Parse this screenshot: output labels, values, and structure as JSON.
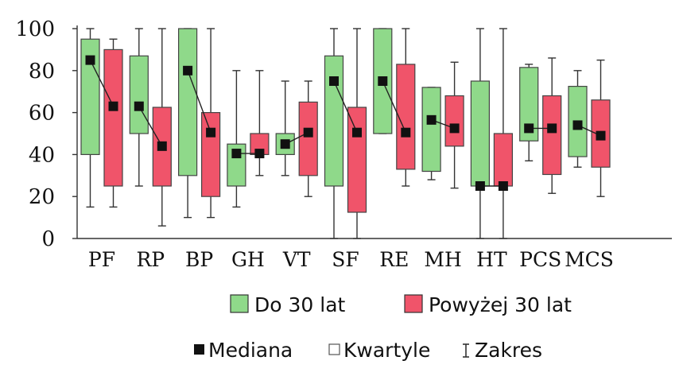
{
  "chart_data": {
    "type": "boxplot",
    "title": "",
    "xlabel": "",
    "ylabel": "",
    "ylim": [
      0,
      100
    ],
    "yticks": [
      0,
      20,
      40,
      60,
      80,
      100
    ],
    "grid": false,
    "legend_position": "bottom",
    "categories": [
      "PF",
      "RP",
      "BP",
      "GH",
      "VT",
      "SF",
      "RE",
      "MH",
      "HT",
      "PCS",
      "MCS"
    ],
    "series": [
      {
        "name": "Do 30 lat",
        "color": "#8fd98a",
        "boxes": [
          {
            "min": 15,
            "q1": 40,
            "median": 85,
            "q3": 95,
            "max": 100
          },
          {
            "min": 25,
            "q1": 50,
            "median": 63,
            "q3": 87,
            "max": 100
          },
          {
            "min": 10,
            "q1": 30,
            "median": 80,
            "q3": 100,
            "max": 100
          },
          {
            "min": 15,
            "q1": 25,
            "median": 40.5,
            "q3": 45,
            "max": 80
          },
          {
            "min": 30,
            "q1": 40,
            "median": 45,
            "q3": 50,
            "max": 75
          },
          {
            "min": 0,
            "q1": 25,
            "median": 75,
            "q3": 87,
            "max": 100
          },
          {
            "min": 50,
            "q1": 50,
            "median": 75,
            "q3": 100,
            "max": 100
          },
          {
            "min": 28,
            "q1": 32,
            "median": 56.5,
            "q3": 72,
            "max": 72
          },
          {
            "min": 0,
            "q1": 25,
            "median": 25,
            "q3": 75,
            "max": 100
          },
          {
            "min": 37,
            "q1": 46.5,
            "median": 52.5,
            "q3": 81.5,
            "max": 83
          },
          {
            "min": 34,
            "q1": 39,
            "median": 54,
            "q3": 72.5,
            "max": 80
          }
        ]
      },
      {
        "name": "Powyżej 30 lat",
        "color": "#f0546a",
        "boxes": [
          {
            "min": 15,
            "q1": 25,
            "median": 63,
            "q3": 90,
            "max": 95
          },
          {
            "min": 6,
            "q1": 25,
            "median": 44,
            "q3": 62.5,
            "max": 100
          },
          {
            "min": 10,
            "q1": 20,
            "median": 50.5,
            "q3": 60,
            "max": 100
          },
          {
            "min": 30,
            "q1": 40,
            "median": 40.5,
            "q3": 50,
            "max": 80
          },
          {
            "min": 20,
            "q1": 30,
            "median": 50.5,
            "q3": 65,
            "max": 75
          },
          {
            "min": 0,
            "q1": 12.5,
            "median": 50.5,
            "q3": 62.5,
            "max": 100
          },
          {
            "min": 25,
            "q1": 33,
            "median": 50.5,
            "q3": 83,
            "max": 100
          },
          {
            "min": 24,
            "q1": 44,
            "median": 52.5,
            "q3": 68,
            "max": 84
          },
          {
            "min": 0,
            "q1": 25,
            "median": 25,
            "q3": 50,
            "max": 100
          },
          {
            "min": 21.5,
            "q1": 30.5,
            "median": 52.5,
            "q3": 68,
            "max": 86
          },
          {
            "min": 20,
            "q1": 34,
            "median": 49,
            "q3": 66,
            "max": 85
          }
        ]
      }
    ],
    "legend": {
      "series_labels": [
        "Do 30 lat",
        "Powyżej 30 lat"
      ],
      "marker_labels": {
        "median": "Mediana",
        "quartiles": "Kwartyle",
        "range": "Zakres"
      }
    }
  }
}
